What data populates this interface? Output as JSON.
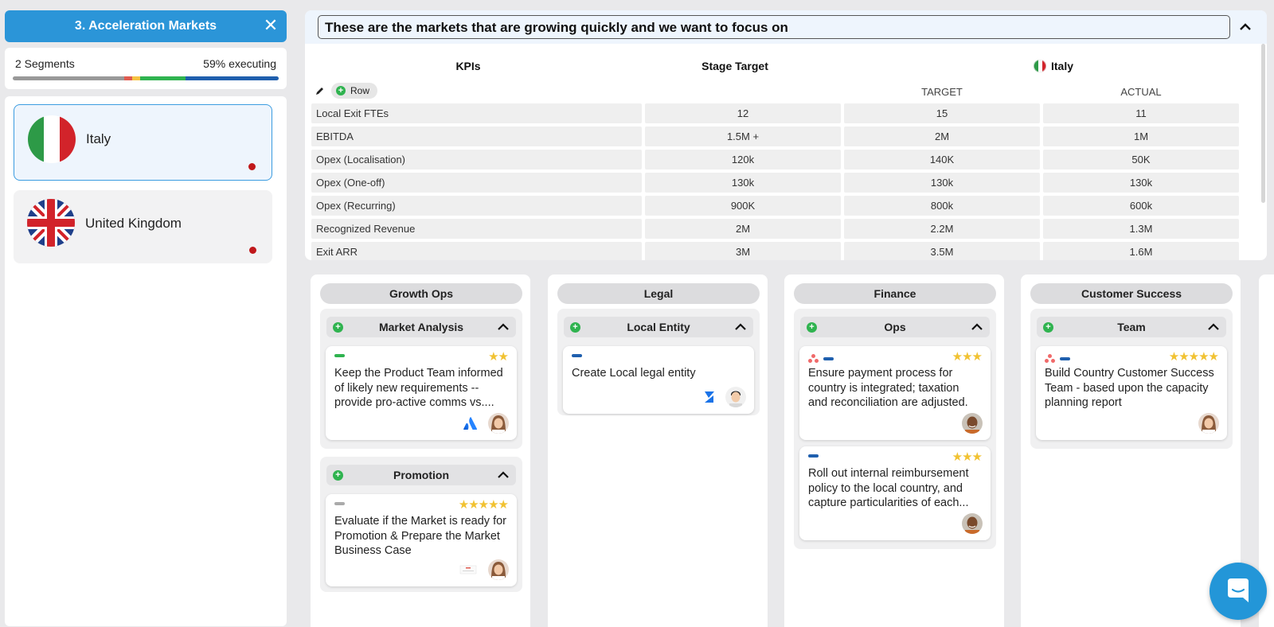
{
  "left": {
    "title": "3. Acceleration Markets",
    "close_icon": "close-icon",
    "segments_label": "2 Segments",
    "executing_label": "59% executing",
    "progress": [
      {
        "color": "#999999",
        "fraction": 0.42
      },
      {
        "color": "#e05a4f",
        "fraction": 0.03
      },
      {
        "color": "#f5c342",
        "fraction": 0.03
      },
      {
        "color": "#2fb34f",
        "fraction": 0.17
      },
      {
        "color": "#1f5fae",
        "fraction": 0.35
      }
    ],
    "countries": [
      {
        "name": "Italy",
        "selected": true,
        "status_color": "#c0181b"
      },
      {
        "name": "United Kingdom",
        "selected": false,
        "status_color": "#c0181b"
      }
    ]
  },
  "kpi": {
    "title": "These are the markets that are growing quickly and we want to focus on",
    "headers": {
      "kpis": "KPIs",
      "stage_target": "Stage Target",
      "country": "Italy"
    },
    "subheaders": {
      "target": "TARGET",
      "actual": "ACTUAL"
    },
    "row_button": "Row",
    "rows": [
      {
        "name": "Local Exit FTEs",
        "stage": "12",
        "target": "15",
        "actual": "11"
      },
      {
        "name": "EBITDA",
        "stage": "1.5M +",
        "target": "2M",
        "actual": "1M"
      },
      {
        "name": "Opex (Localisation)",
        "stage": "120k",
        "target": "140K",
        "actual": "50K"
      },
      {
        "name": "Opex (One-off)",
        "stage": "130k",
        "target": "130k",
        "actual": "130k"
      },
      {
        "name": "Opex (Recurring)",
        "stage": "900K",
        "target": "800k",
        "actual": "600k"
      },
      {
        "name": "Recognized Revenue",
        "stage": "2M",
        "target": "2.2M",
        "actual": "1.3M"
      },
      {
        "name": "Exit ARR",
        "stage": "3M",
        "target": "3.5M",
        "actual": "1.6M"
      }
    ]
  },
  "board": {
    "columns": [
      {
        "title": "Growth Ops",
        "groups": [
          {
            "title": "Market Analysis",
            "cards": [
              {
                "tags": [
                  "#2fb34f"
                ],
                "asana": false,
                "stars": "★★",
                "text": "Keep the Product Team informed of likely new requirements -- provide pro-active comms vs....",
                "app": "atlassian-icon",
                "avatar": "woman-avatar"
              }
            ]
          },
          {
            "title": "Promotion",
            "cards": [
              {
                "tags": [
                  "#aaaaaa"
                ],
                "asana": false,
                "stars": "★★★★★",
                "text": "Evaluate if the Market is ready for Promotion & Prepare the Market Business Case",
                "app": "doc-thumbnail-icon",
                "avatar": "woman-avatar"
              }
            ]
          }
        ]
      },
      {
        "title": "Legal",
        "groups": [
          {
            "title": "Local Entity",
            "cards": [
              {
                "tags": [
                  "#1f5fae"
                ],
                "asana": false,
                "stars": "",
                "text": "Create Local legal entity",
                "app": "zendesk-icon",
                "avatar": "man-avatar"
              }
            ]
          }
        ]
      },
      {
        "title": "Finance",
        "groups": [
          {
            "title": "Ops",
            "cards": [
              {
                "tags": [
                  "#1f5fae"
                ],
                "asana": true,
                "stars": "★★★",
                "text": "Ensure payment process for country is integrated; taxation and reconciliation are adjusted.",
                "app": "",
                "avatar": "man-avatar-dark"
              },
              {
                "tags": [
                  "#1f5fae"
                ],
                "asana": false,
                "stars": "★★★",
                "text": "Roll out internal reimbursement policy to the local country, and capture particularities of each...",
                "app": "",
                "avatar": "man-avatar-dark"
              }
            ]
          }
        ]
      },
      {
        "title": "Customer Success",
        "groups": [
          {
            "title": "Team",
            "cards": [
              {
                "tags": [
                  "#1f5fae"
                ],
                "asana": true,
                "stars": "★★★★★",
                "text": "Build Country Customer Success Team - based upon the capacity planning report",
                "app": "",
                "avatar": "woman-avatar"
              }
            ]
          }
        ]
      }
    ]
  },
  "chat_icon": "chat-icon"
}
